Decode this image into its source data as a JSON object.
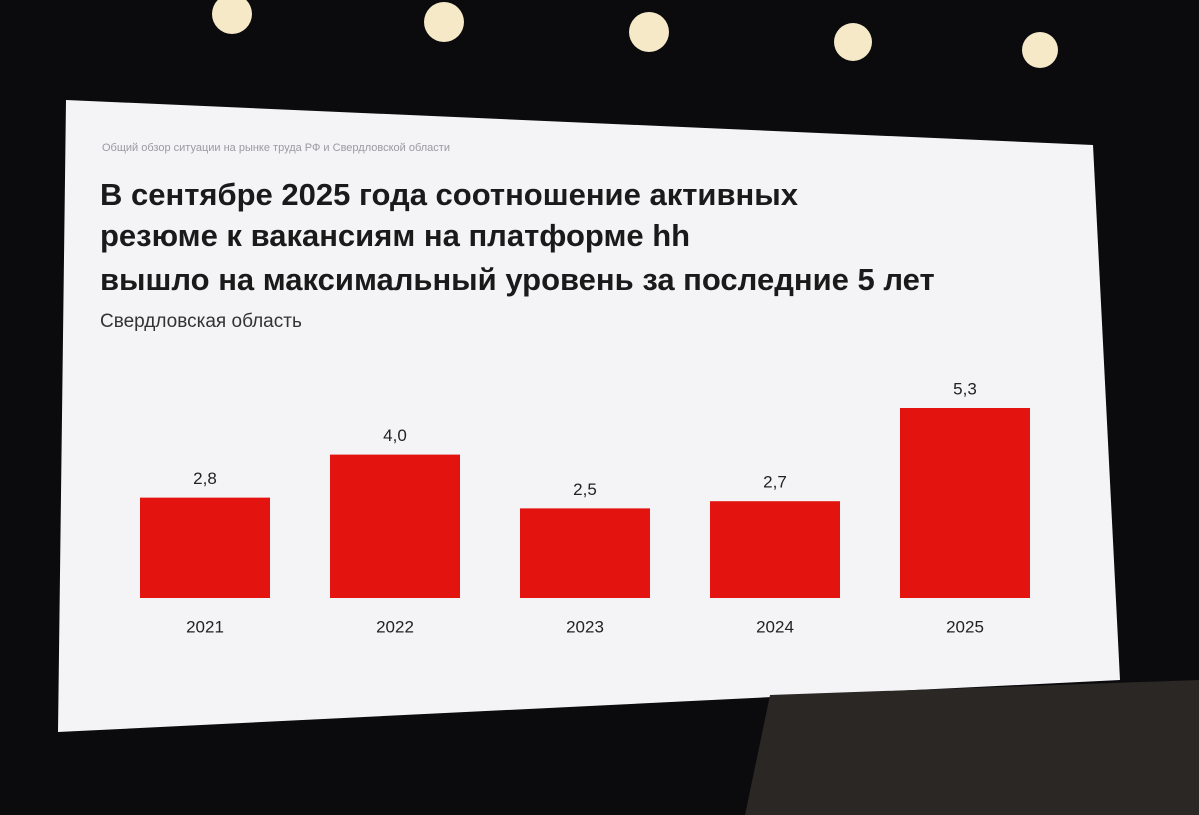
{
  "chart_data": {
    "type": "bar",
    "header": "Общий обзор ситуации на рынке труда РФ и Свердловской области",
    "title": [
      "В сентябре 2025 года соотношение активных",
      "резюме к вакансиям на платформе hh",
      "вышло на максимальный уровень за последние 5 лет"
    ],
    "subtitle": "Свердловская область",
    "categories": [
      "2021",
      "2022",
      "2023",
      "2024",
      "2025"
    ],
    "values": [
      2.8,
      4.0,
      2.5,
      2.7,
      5.3
    ],
    "value_labels": [
      "2,8",
      "4,0",
      "2,5",
      "2,7",
      "5,3"
    ],
    "color": "#e3130f"
  }
}
